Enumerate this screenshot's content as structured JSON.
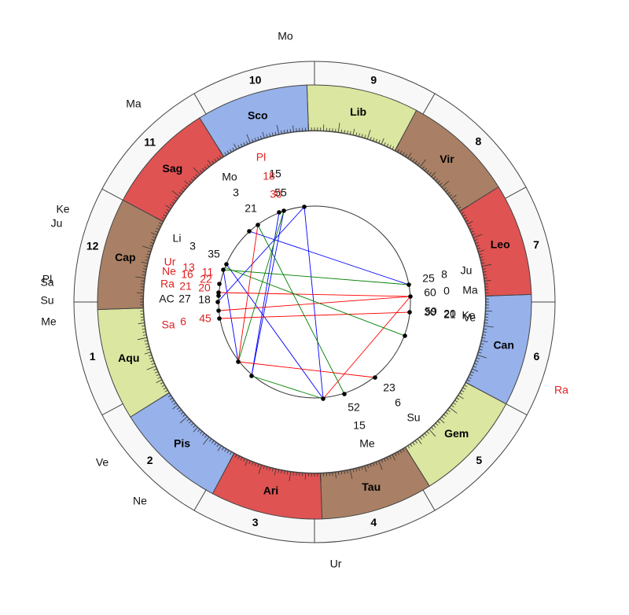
{
  "signs": [
    "Aqu",
    "Pis",
    "Ari",
    "Tau",
    "Gem",
    "Can",
    "Leo",
    "Vir",
    "Lib",
    "Sco",
    "Sag",
    "Cap"
  ],
  "sign_colors": [
    "#dbe6a0",
    "#97b1ea",
    "#e05353",
    "#a98065",
    "#dbe6a0",
    "#97b1ea",
    "#e05353",
    "#a98065",
    "#dbe6a0",
    "#97b1ea",
    "#e05353",
    "#a98065"
  ],
  "houses": [
    "1",
    "2",
    "3",
    "4",
    "5",
    "6",
    "7",
    "8",
    "9",
    "10",
    "11",
    "12"
  ],
  "labels": [
    {
      "text": "Mo",
      "color": "black"
    },
    {
      "text": "Ma",
      "color": "black"
    },
    {
      "text": "Ke",
      "color": "black"
    },
    {
      "text": "Ju",
      "color": "black"
    },
    {
      "text": "Pl",
      "color": "black"
    },
    {
      "text": "Sa",
      "color": "black"
    },
    {
      "text": "Su",
      "color": "black"
    },
    {
      "text": "Me",
      "color": "black"
    },
    {
      "text": "Ve",
      "color": "black"
    },
    {
      "text": "Ne",
      "color": "black"
    },
    {
      "text": "Ur",
      "color": "black"
    },
    {
      "text": "Ra",
      "color": "red"
    },
    {
      "text": "Pl",
      "color": "red"
    },
    {
      "text": "Mo",
      "color": "black"
    },
    {
      "text": "Li",
      "color": "black"
    },
    {
      "text": "Ur",
      "color": "red"
    },
    {
      "text": "Ne",
      "color": "red"
    },
    {
      "text": "Ra",
      "color": "red"
    },
    {
      "text": "AC",
      "color": "black"
    },
    {
      "text": "Sa",
      "color": "red"
    },
    {
      "text": "Ju",
      "color": "black"
    },
    {
      "text": "Ma",
      "color": "black"
    },
    {
      "text": "Ke",
      "color": "black"
    },
    {
      "text": "Ve",
      "color": "black"
    },
    {
      "text": "Su",
      "color": "black"
    },
    {
      "text": "Me",
      "color": "black"
    },
    {
      "text": "15",
      "color": "black"
    },
    {
      "text": "18",
      "color": "red"
    },
    {
      "text": "3",
      "color": "black"
    },
    {
      "text": "55",
      "color": "black"
    },
    {
      "text": "30",
      "color": "red"
    },
    {
      "text": "21",
      "color": "black"
    },
    {
      "text": "3",
      "color": "black"
    },
    {
      "text": "35",
      "color": "black"
    },
    {
      "text": "13",
      "color": "red"
    },
    {
      "text": "11",
      "color": "red"
    },
    {
      "text": "16",
      "color": "red"
    },
    {
      "text": "22",
      "color": "red"
    },
    {
      "text": "21",
      "color": "red"
    },
    {
      "text": "20",
      "color": "red"
    },
    {
      "text": "27",
      "color": "black"
    },
    {
      "text": "18",
      "color": "black"
    },
    {
      "text": "6",
      "color": "red"
    },
    {
      "text": "45",
      "color": "red"
    },
    {
      "text": "25",
      "color": "black"
    },
    {
      "text": "8",
      "color": "black"
    },
    {
      "text": "60",
      "color": "black"
    },
    {
      "text": "0",
      "color": "black"
    },
    {
      "text": "30",
      "color": "black"
    },
    {
      "text": "59",
      "color": "black"
    },
    {
      "text": "20",
      "color": "black"
    },
    {
      "text": "21",
      "color": "black"
    },
    {
      "text": "23",
      "color": "black"
    },
    {
      "text": "6",
      "color": "black"
    },
    {
      "text": "52",
      "color": "black"
    },
    {
      "text": "15",
      "color": "black"
    }
  ]
}
